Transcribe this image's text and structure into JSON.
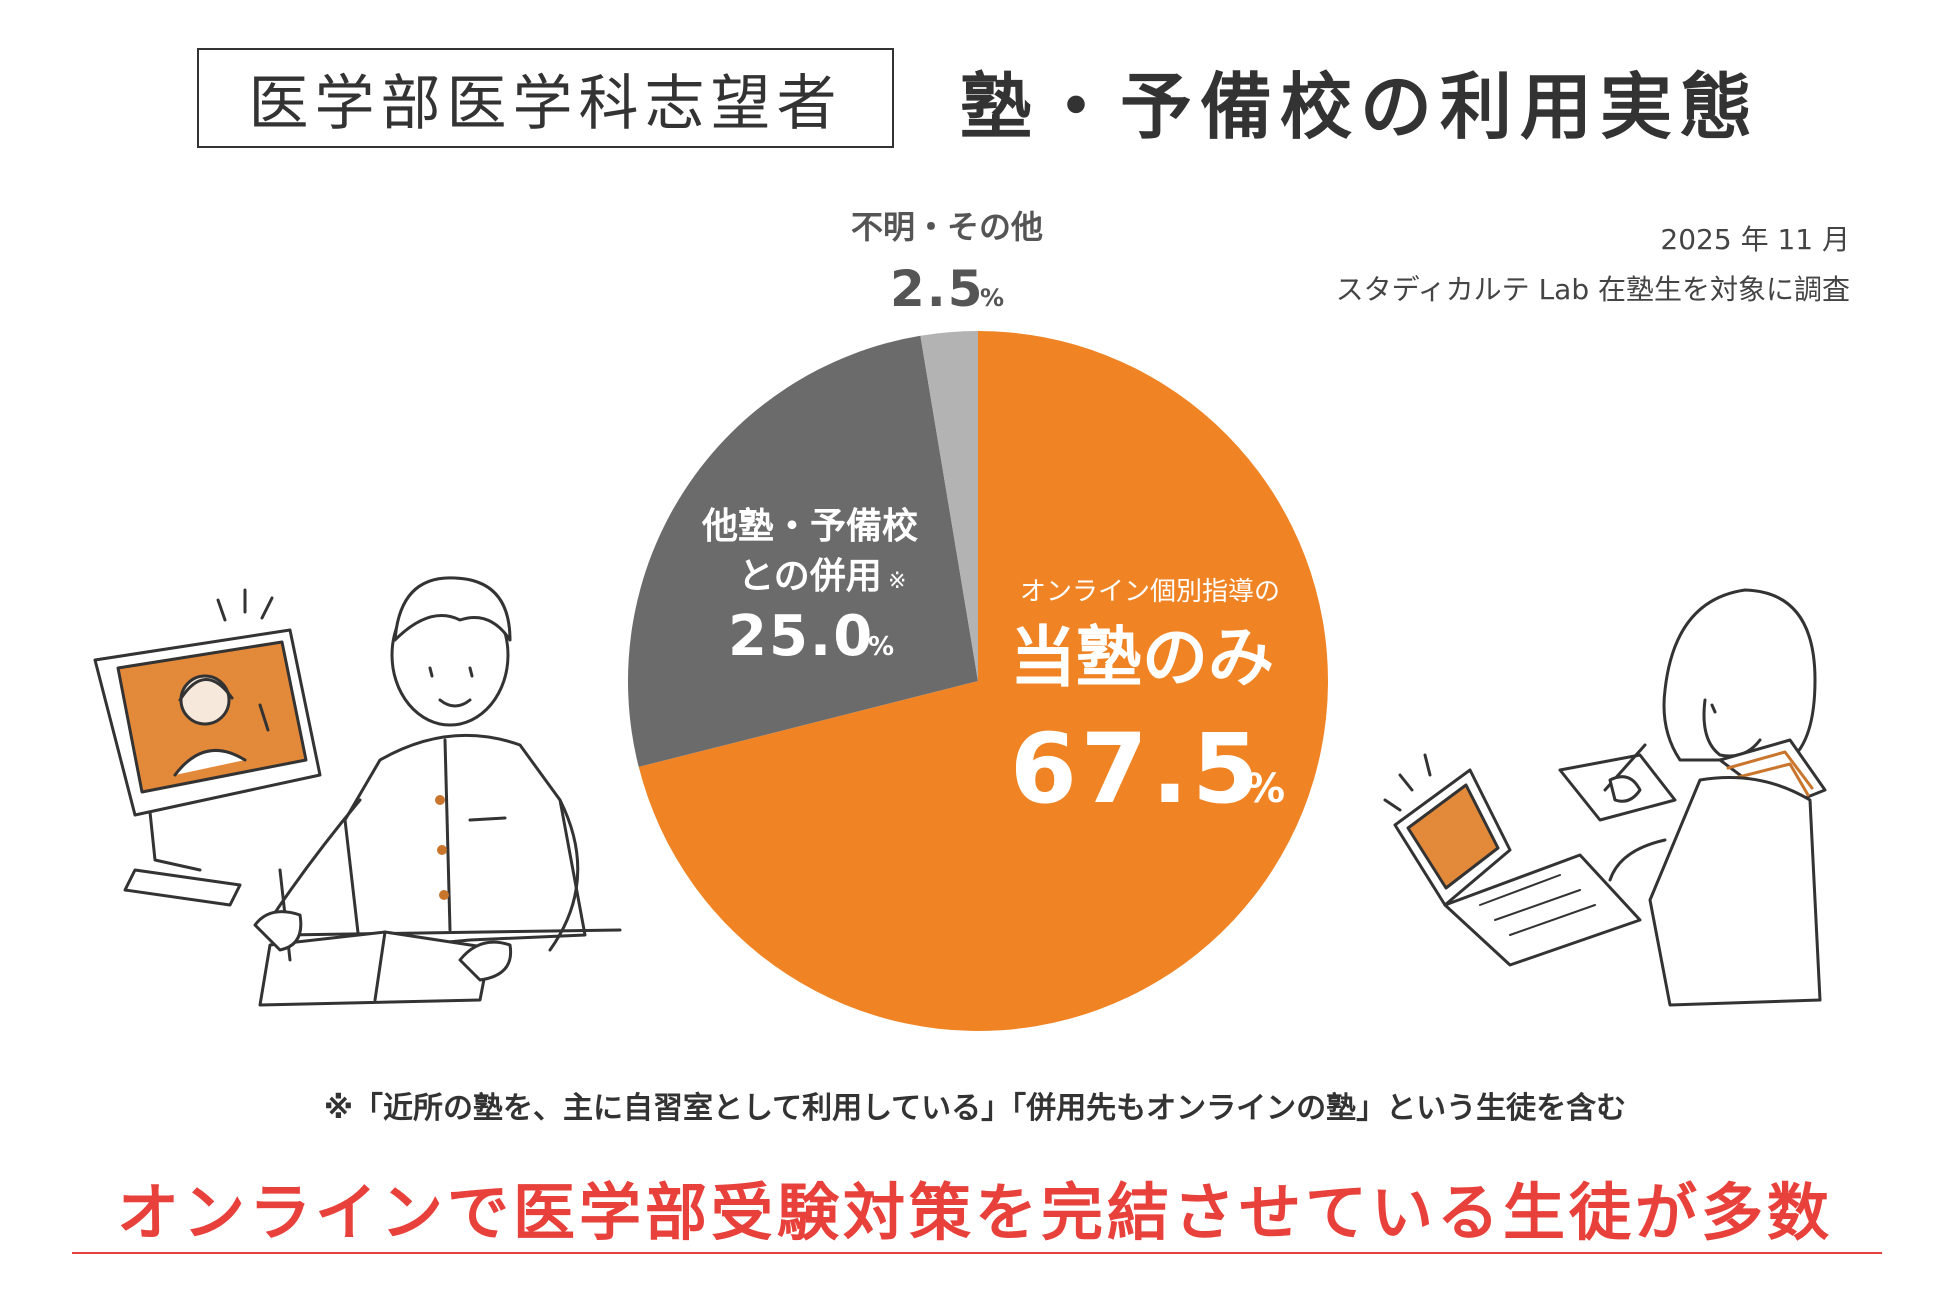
{
  "header": {
    "label": "医学部医学科志望者",
    "title": "塾・予備校の利用実態"
  },
  "survey": {
    "date": "2025 年 11 月",
    "note": "スタディカルテ Lab 在塾生を対象に調査"
  },
  "chart_data": {
    "type": "pie",
    "title": "",
    "slices": [
      {
        "label_small": "オンライン個別指導の",
        "label": "当塾のみ",
        "value": 67.5,
        "value_text": "67.5",
        "unit": "%",
        "color": "#f08424"
      },
      {
        "label_line1": "他塾・予備校",
        "label_line2": "との併用",
        "mark": "※",
        "value": 25.0,
        "value_text": "25.0",
        "unit": "%",
        "color": "#6b6b6b"
      },
      {
        "label": "不明・その他",
        "value": 2.5,
        "value_text": "2.5",
        "unit": "%",
        "color": "#b3b3b3"
      }
    ]
  },
  "footnote": "※「近所の塾を、主に自習室として利用している」「併用先もオンラインの塾」という生徒を含む",
  "conclusion": "オンラインで医学部受験対策を完結させている生徒が多数",
  "colors": {
    "accent_orange": "#f08424",
    "dark_gray": "#6b6b6b",
    "light_gray": "#b3b3b3",
    "headline_red": "#e8403a",
    "text": "#333333"
  }
}
